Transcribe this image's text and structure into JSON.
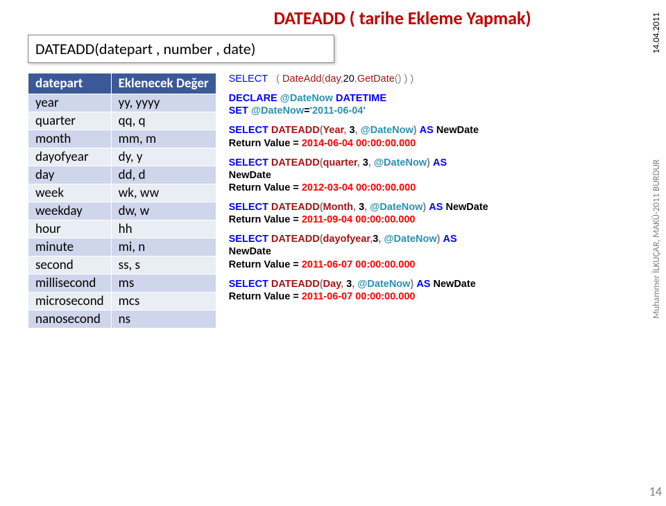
{
  "title": "DATEADD ( tarihe  Ekleme Yapmak)",
  "syntax": "DATEADD(datepart , number , date)",
  "table": {
    "headers": [
      "datepart",
      "Eklenecek Değer"
    ],
    "rows": [
      [
        "year",
        "yy, yyyy"
      ],
      [
        "quarter",
        "qq, q"
      ],
      [
        "month",
        "mm, m"
      ],
      [
        "dayofyear",
        "dy, y"
      ],
      [
        "day",
        "dd, d"
      ],
      [
        "week",
        "wk, ww"
      ],
      [
        "weekday",
        "dw, w"
      ],
      [
        "hour",
        "hh"
      ],
      [
        "minute",
        "mi, n"
      ],
      [
        "second",
        "ss, s"
      ],
      [
        "millisecond",
        "ms"
      ],
      [
        "microsecond",
        "mcs"
      ],
      [
        "nanosecond",
        "ns"
      ]
    ]
  },
  "sel": "SELECT",
  "decl": "DECLARE",
  "set": "SET",
  "as": "AS",
  "fnDateAdd": "DateAdd",
  "fnDATEADD": "DATEADD",
  "fnGetDate": "GetDate",
  "opParen": "(",
  "clParen": ")",
  "comma": ",",
  "eq": "=",
  "arg_day": "day",
  "arg_20": "20",
  "tripleclose": ") ) )",
  "varDateNow": "@DateNow",
  "tpDatetime": "DATETIME",
  "dateStr": "'2011-06-04'",
  "argYear": "Year",
  "argQuarter": "quarter",
  "argMonth": "Month",
  "argDayofyear": "dayofyear",
  "argDay": "Day",
  "arg3": "3",
  "NewDate": "NewDate",
  "rvLabel": "Return Value = ",
  "rv1": "2014-06-04 00:00:00.000",
  "rv2": "2012-03-04 00:00:00.000",
  "rv3": "2011-09-04 00:00:00.000",
  "rv4": "2011-06-07 00:00:00.000",
  "rv5": "2011-06-07 00:00:00.000",
  "sideDate": "14.04.2011",
  "sideAuthor": "Muhammer İLKUÇAR, MAKÜ-2011 BURDUR",
  "pageNum": "14"
}
